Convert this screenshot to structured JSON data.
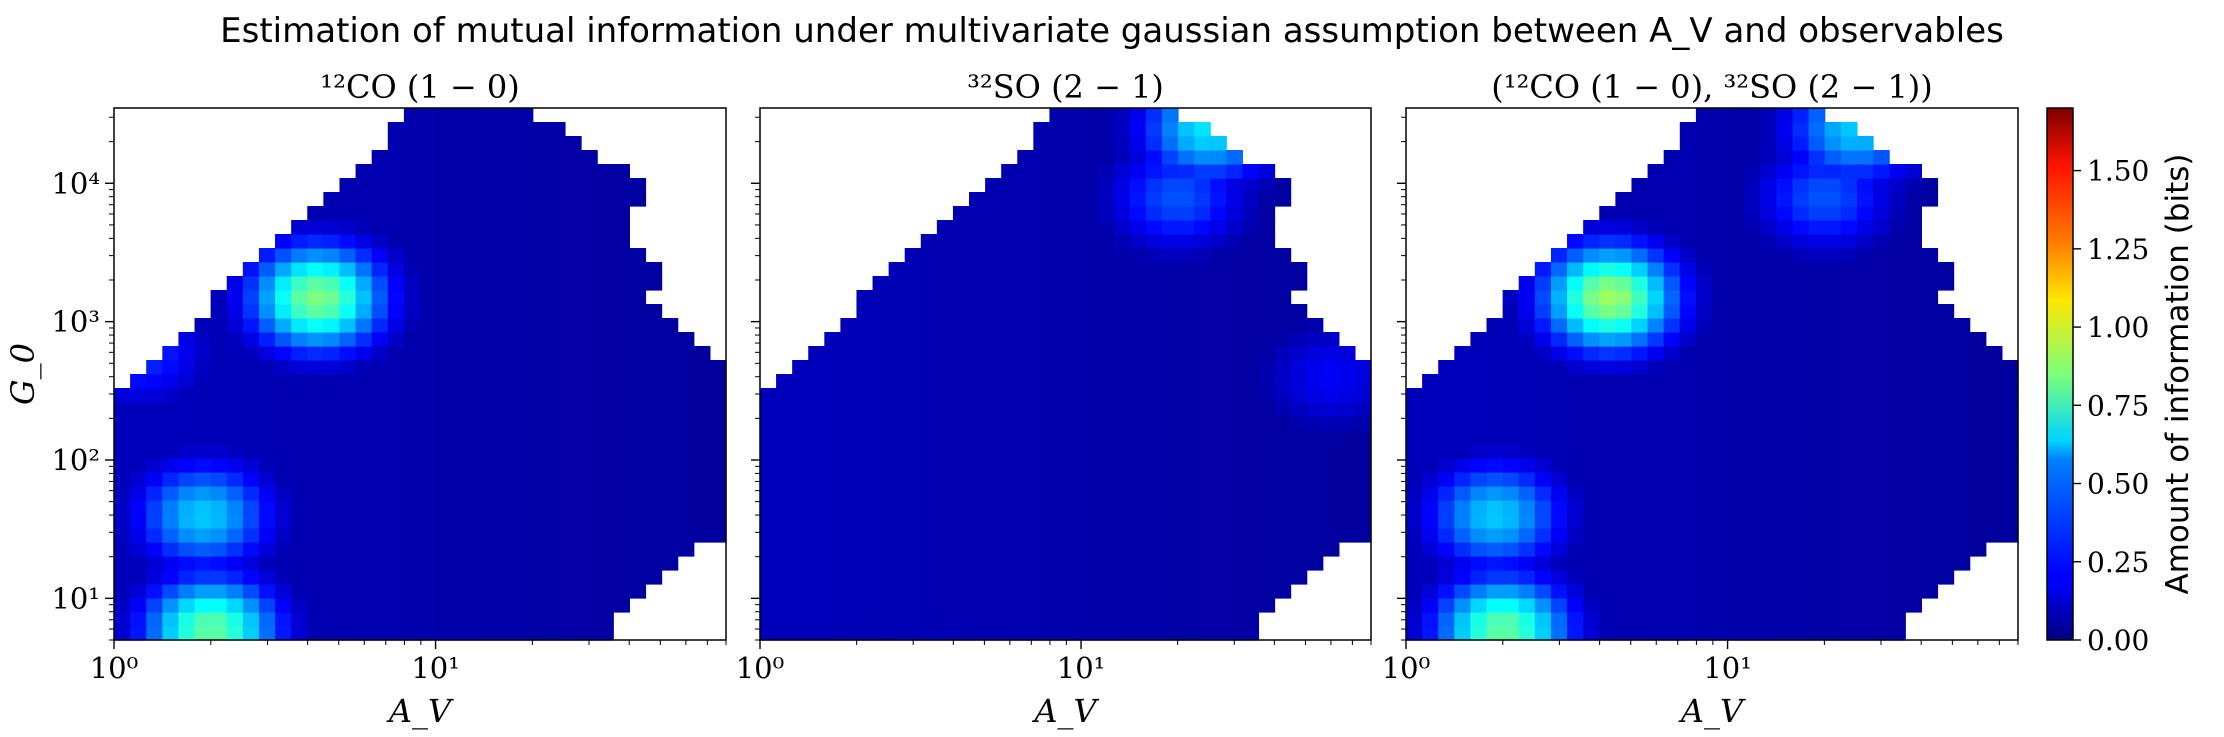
{
  "figure": {
    "title": "Estimation of mutual information under multivariate gaussian assumption between A_V and observables"
  },
  "colorbar": {
    "label": "Amount of information (bits)",
    "range": [
      0.0,
      1.7
    ],
    "ticks": [
      "0.00",
      "0.25",
      "0.50",
      "0.75",
      "1.00",
      "1.25",
      "1.50"
    ],
    "colormap": "jet"
  },
  "chart_data": [
    {
      "type": "heatmap",
      "title": "¹²CO (1 − 0)",
      "xlabel": "A_V",
      "ylabel": "G_0",
      "x_scale": "log",
      "y_scale": "log",
      "xlim": [
        1,
        80
      ],
      "ylim": [
        5,
        35000
      ],
      "x_ticks": [
        "10⁰",
        "10¹"
      ],
      "y_ticks": [
        "10¹",
        "10²",
        "10³",
        "10⁴"
      ],
      "hotspots": [
        {
          "A_V": 4.3,
          "G_0": 1500,
          "bits": 0.85
        },
        {
          "A_V": 2.0,
          "G_0": 6,
          "bits": 0.8
        },
        {
          "A_V": 1.9,
          "G_0": 40,
          "bits": 0.55
        },
        {
          "A_V": 1.2,
          "G_0": 600,
          "bits": 0.3
        }
      ]
    },
    {
      "type": "heatmap",
      "title": "³²SO (2 − 1)",
      "xlabel": "A_V",
      "x_scale": "log",
      "y_scale": "log",
      "xlim": [
        1,
        80
      ],
      "ylim": [
        5,
        35000
      ],
      "x_ticks": [
        "10⁰",
        "10¹"
      ],
      "hotspots": [
        {
          "A_V": 25,
          "G_0": 25000,
          "bits": 0.6
        },
        {
          "A_V": 20,
          "G_0": 8000,
          "bits": 0.35
        },
        {
          "A_V": 60,
          "G_0": 400,
          "bits": 0.2
        }
      ]
    },
    {
      "type": "heatmap",
      "title": "(¹²CO (1 − 0), ³²SO (2 − 1))",
      "xlabel": "A_V",
      "x_scale": "log",
      "y_scale": "log",
      "xlim": [
        1,
        80
      ],
      "ylim": [
        5,
        35000
      ],
      "x_ticks": [
        "10⁰",
        "10¹"
      ],
      "hotspots": [
        {
          "A_V": 4.3,
          "G_0": 1500,
          "bits": 0.9
        },
        {
          "A_V": 2.0,
          "G_0": 6,
          "bits": 0.8
        },
        {
          "A_V": 1.9,
          "G_0": 40,
          "bits": 0.55
        },
        {
          "A_V": 25,
          "G_0": 25000,
          "bits": 0.55
        },
        {
          "A_V": 20,
          "G_0": 8000,
          "bits": 0.35
        }
      ]
    }
  ]
}
